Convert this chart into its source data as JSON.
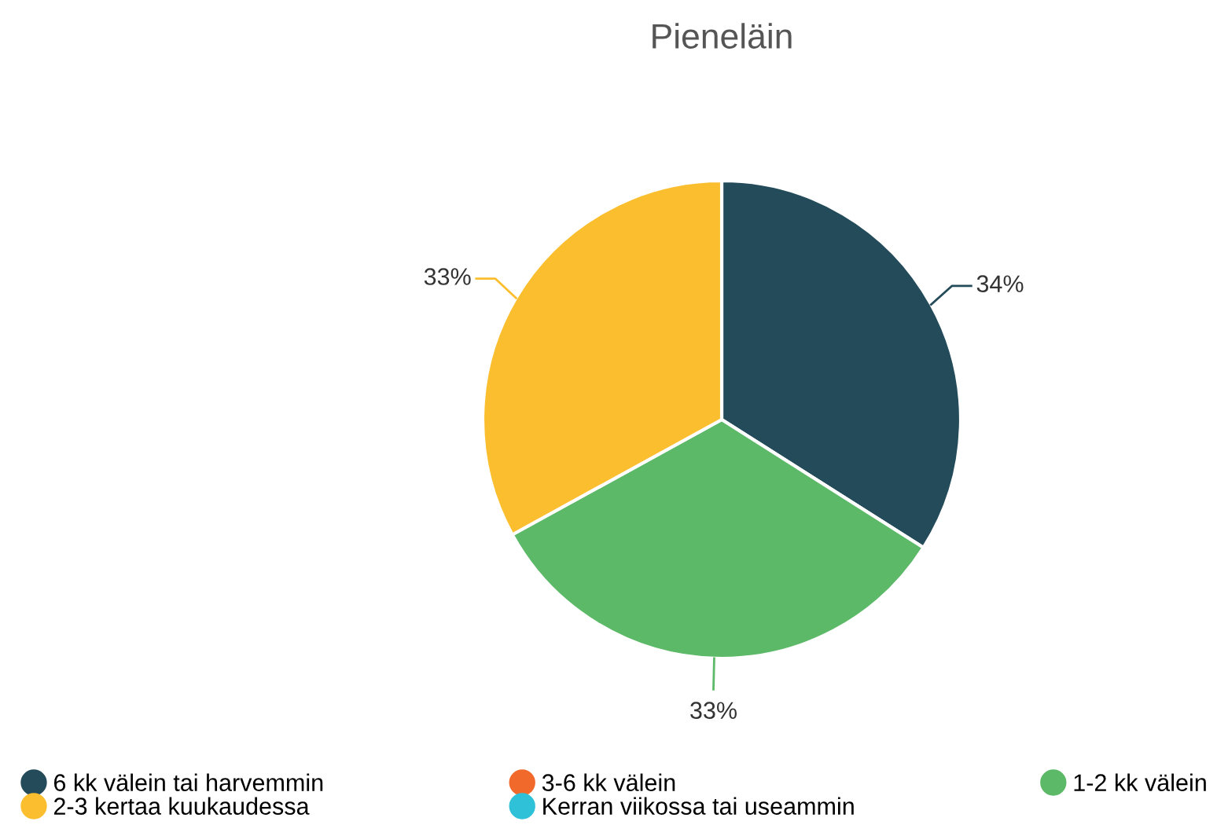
{
  "chart_data": {
    "type": "pie",
    "title": "Pieneläin",
    "categories": [
      "6 kk välein tai harvemmin",
      "3-6 kk välein",
      "1-2 kk välein",
      "2-3 kertaa kuukaudessa",
      "Kerran viikossa tai useammin"
    ],
    "values": [
      34,
      0,
      33,
      33,
      0
    ],
    "colors": [
      "#234b5a",
      "#f26a2b",
      "#5cb968",
      "#fbbe2e",
      "#2fc1d8"
    ],
    "value_labels": [
      "34%",
      null,
      "33%",
      "33%",
      null
    ],
    "legend": "bottom"
  }
}
